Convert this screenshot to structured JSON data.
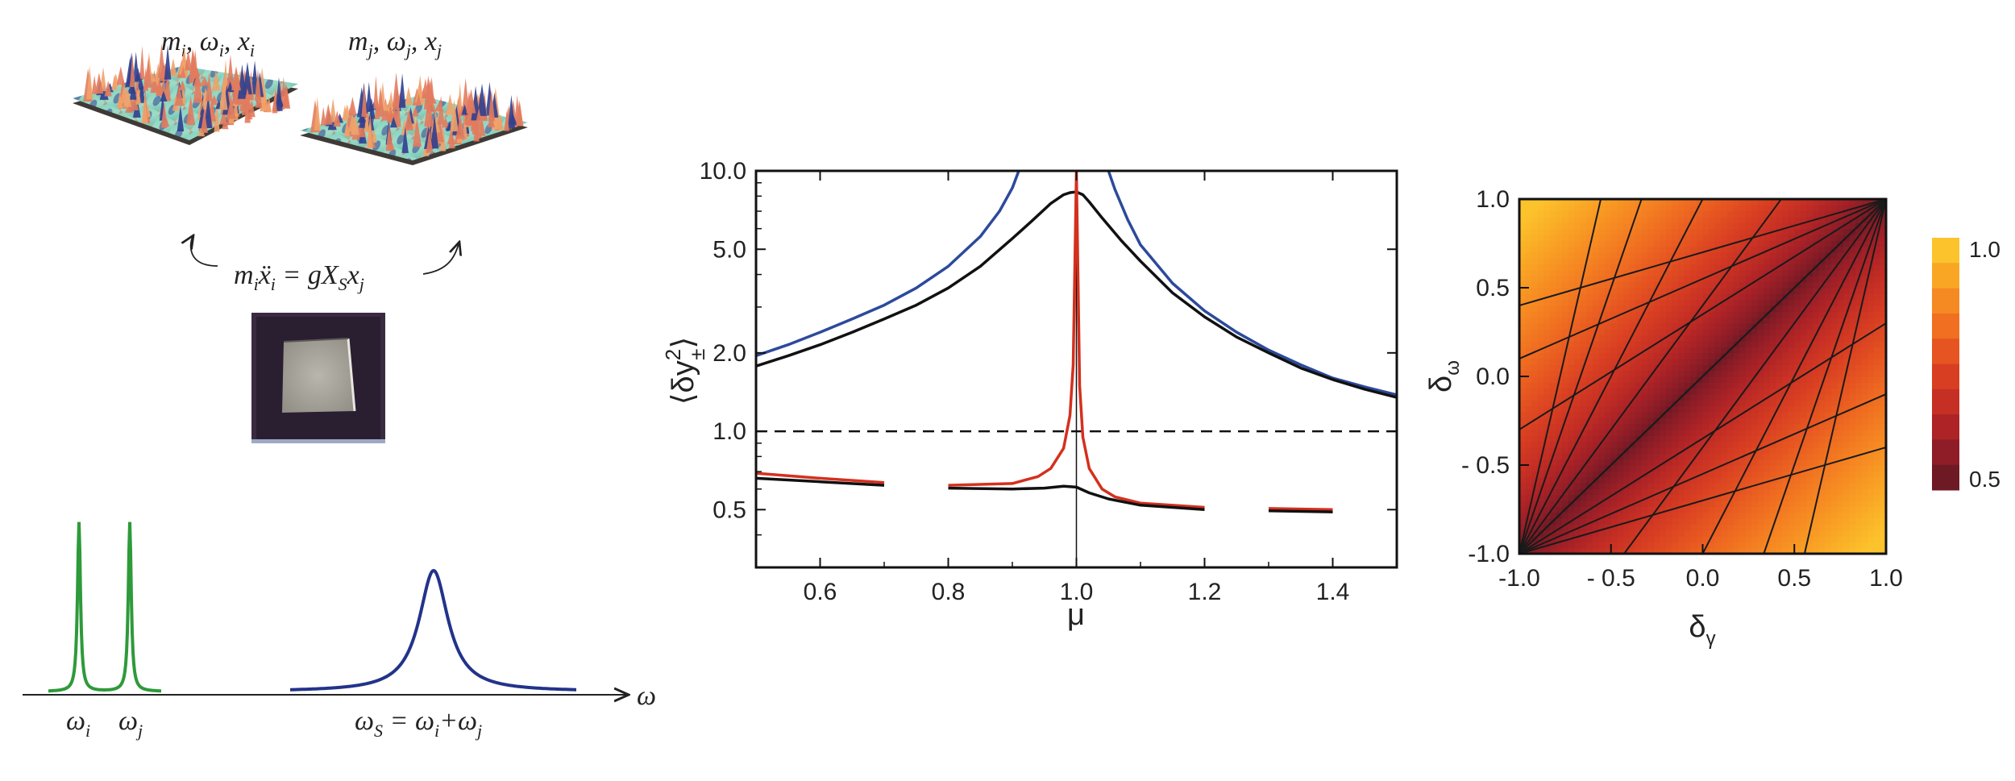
{
  "schematic": {
    "label_mode_i": "m",
    "label_mode_i_sub": "i",
    "label_mode_i_rest": ", ω",
    "label_mode_i_sub2": "i",
    "label_mode_i_rest2": ", x",
    "label_mode_i_sub3": "i",
    "label_mode_j": "m",
    "label_mode_j_sub": "j",
    "label_mode_j_rest": ", ω",
    "label_mode_j_sub2": "j",
    "label_mode_j_rest2": ", x",
    "label_mode_j_sub3": "j",
    "equation_lhs": "m",
    "equation_lhs_sub": "i",
    "equation_x": "ẍ",
    "equation_x_sub": "i",
    "equation_rhs": " = gX",
    "equation_rhs_sub": "S",
    "equation_rhs2": "x",
    "equation_rhs2_sub": "j",
    "omega_axis": "ω",
    "omega_i": "ω",
    "omega_i_sub": "i",
    "omega_j": "ω",
    "omega_j_sub": "j",
    "omega_s": "ω",
    "omega_s_sub": "S",
    "omega_s_rhs": " = ω",
    "omega_s_rhs_sub": "i",
    "omega_s_rhs2": "+ω",
    "omega_s_rhs2_sub": "j",
    "colors": {
      "green_peaks": "#2e9a3a",
      "blue_peak": "#22338a"
    }
  },
  "chart_data": [
    {
      "type": "line",
      "xlabel": "μ",
      "ylabel_prefix": "⟨δy",
      "ylabel_sub": "±",
      "ylabel_sup": "2",
      "ylabel_suffix": "⟩",
      "xlim": [
        0.5,
        1.5
      ],
      "ylim": [
        0.3,
        10.0
      ],
      "yscale": "log",
      "xticks": [
        "0.6",
        "0.8",
        "1.0",
        "1.2",
        "1.4"
      ],
      "xtick_values": [
        0.6,
        0.8,
        1.0,
        1.2,
        1.4
      ],
      "yticks": [
        "0.5",
        "1.0",
        "2.0",
        "5.0",
        "10.0"
      ],
      "ytick_values": [
        0.5,
        1.0,
        2.0,
        5.0,
        10.0
      ],
      "reference_line": {
        "y": 1.0,
        "style": "dashed"
      },
      "vertical_line": {
        "x": 1.0
      },
      "series": [
        {
          "color": "#2c4a9c",
          "x": [
            0.5,
            0.55,
            0.6,
            0.65,
            0.7,
            0.75,
            0.8,
            0.85,
            0.88,
            0.9,
            0.91,
            1.05,
            1.06,
            1.08,
            1.1,
            1.15,
            1.2,
            1.25,
            1.3,
            1.35,
            1.4,
            1.45,
            1.5
          ],
          "y": [
            1.95,
            2.15,
            2.4,
            2.7,
            3.05,
            3.55,
            4.3,
            5.6,
            7.0,
            8.6,
            10.0,
            10.0,
            8.5,
            6.5,
            5.2,
            3.7,
            2.9,
            2.4,
            2.05,
            1.8,
            1.6,
            1.48,
            1.38
          ]
        },
        {
          "color": "#111111",
          "x": [
            0.5,
            0.55,
            0.6,
            0.65,
            0.7,
            0.75,
            0.8,
            0.85,
            0.9,
            0.93,
            0.96,
            0.98,
            0.99,
            1.0,
            1.01,
            1.02,
            1.04,
            1.07,
            1.1,
            1.15,
            1.2,
            1.25,
            1.3,
            1.35,
            1.4,
            1.45,
            1.5
          ],
          "y": [
            1.78,
            1.95,
            2.15,
            2.4,
            2.7,
            3.05,
            3.55,
            4.3,
            5.5,
            6.4,
            7.5,
            8.1,
            8.25,
            8.3,
            8.1,
            7.6,
            6.6,
            5.4,
            4.5,
            3.4,
            2.75,
            2.3,
            2.0,
            1.75,
            1.58,
            1.45,
            1.35
          ]
        },
        {
          "color": "#d4301e",
          "x": [
            0.5,
            0.6,
            0.7,
            0.8,
            0.9,
            0.94,
            0.96,
            0.98,
            0.99,
            0.995,
            1.0,
            1.005,
            1.01,
            1.02,
            1.04,
            1.06,
            1.1,
            1.2,
            1.3,
            1.4,
            1.5
          ],
          "y": [
            0.69,
            0.66,
            0.635,
            0.62,
            0.63,
            0.67,
            0.72,
            0.86,
            1.15,
            1.8,
            10.0,
            1.5,
            0.95,
            0.72,
            0.6,
            0.56,
            0.53,
            0.51,
            0.505,
            0.5,
            0.5
          ]
        },
        {
          "color": "#111111",
          "x": [
            0.5,
            0.6,
            0.7,
            0.8,
            0.9,
            0.95,
            0.98,
            1.0,
            1.02,
            1.05,
            1.1,
            1.2,
            1.3,
            1.4,
            1.5
          ],
          "y": [
            0.66,
            0.64,
            0.62,
            0.605,
            0.6,
            0.605,
            0.615,
            0.61,
            0.58,
            0.55,
            0.52,
            0.5,
            0.495,
            0.49,
            0.49
          ]
        }
      ]
    },
    {
      "type": "heatmap",
      "xlabel": "δ",
      "xlabel_sub": "γ",
      "ylabel": "δ",
      "ylabel_sub": "ω",
      "xlim": [
        -1.0,
        1.0
      ],
      "ylim": [
        -1.0,
        1.0
      ],
      "xticks": [
        "-1.0",
        "- 0.5",
        "0.0",
        "0.5",
        "1.0"
      ],
      "xtick_values": [
        -1.0,
        -0.5,
        0.0,
        0.5,
        1.0
      ],
      "yticks": [
        "-1.0",
        "- 0.5",
        "0.0",
        "0.5",
        "1.0"
      ],
      "ytick_values": [
        -1.0,
        -0.5,
        0.0,
        0.5,
        1.0
      ],
      "colorbar": {
        "ticks": [
          "1.0",
          "0.5"
        ],
        "tick_values": [
          1.0,
          0.5
        ],
        "range": [
          0.5,
          1.0
        ],
        "colors": [
          "#fcc32c",
          "#f9a625",
          "#f68a22",
          "#f06f21",
          "#e65521",
          "#d83f22",
          "#c62f24",
          "#ad2326",
          "#8e1d27",
          "#6e1a24"
        ]
      },
      "contour_slopes_from_top_right": [
        0.3,
        0.45,
        0.65,
        1.0,
        1.4,
        2.0,
        3.0,
        4.5
      ]
    }
  ]
}
